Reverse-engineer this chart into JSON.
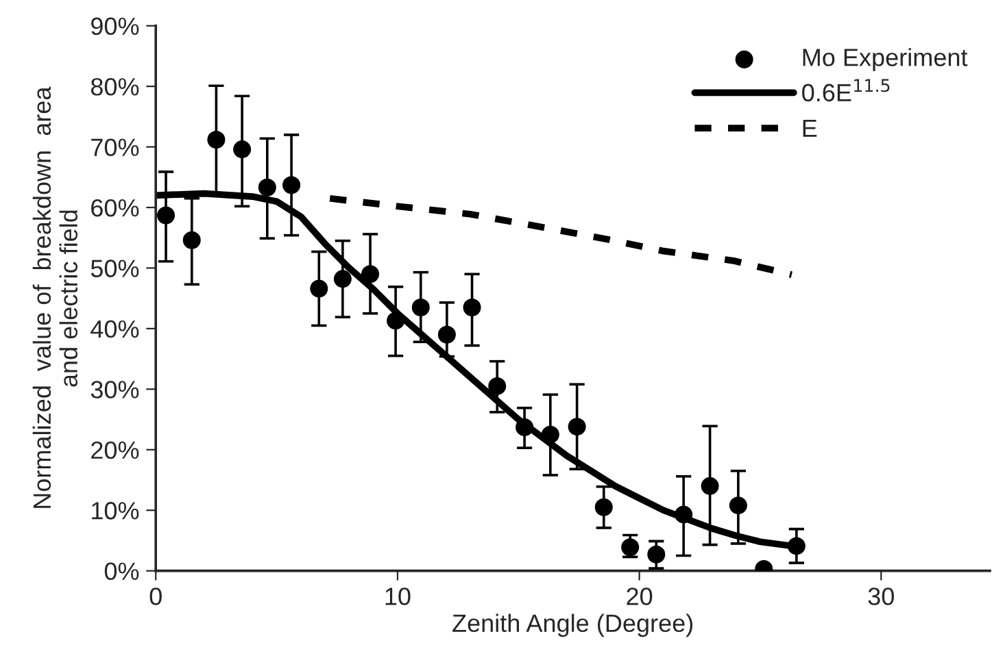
{
  "chart_data": {
    "type": "scatter",
    "xlabel": "Zenith Angle (Degree)",
    "ylabel": "Normalized  value of  breakdown  area\nand electric field",
    "xlim": [
      0,
      34.5
    ],
    "xticks": [
      0,
      10,
      20,
      30
    ],
    "ylim": [
      0,
      90
    ],
    "yticks": [
      {
        "value": 0,
        "label": "0%"
      },
      {
        "value": 10,
        "label": "10%"
      },
      {
        "value": 20,
        "label": "20%"
      },
      {
        "value": 30,
        "label": "30%"
      },
      {
        "value": 40,
        "label": "40%"
      },
      {
        "value": 50,
        "label": "50%"
      },
      {
        "value": 60,
        "label": "60%"
      },
      {
        "value": 70,
        "label": "70%"
      },
      {
        "value": 80,
        "label": "80%"
      },
      {
        "value": 90,
        "label": "90%"
      }
    ],
    "grid": false,
    "legend": "top right",
    "series": [
      {
        "name": "Mo Experiment",
        "marker": "circle",
        "color": "#000000",
        "x": [
          0.42,
          1.49,
          2.5,
          3.57,
          4.61,
          5.61,
          6.75,
          7.73,
          8.87,
          9.92,
          10.96,
          12.04,
          13.08,
          14.12,
          15.25,
          16.32,
          17.42,
          18.53,
          19.62,
          20.7,
          21.83,
          22.92,
          24.09,
          25.15,
          26.5
        ],
        "values": [
          58.7,
          54.6,
          71.2,
          69.6,
          63.3,
          63.7,
          46.6,
          48.2,
          49.0,
          41.3,
          43.5,
          39.0,
          43.5,
          30.5,
          23.7,
          22.5,
          23.8,
          10.5,
          3.9,
          2.7,
          9.3,
          14.0,
          10.8,
          0.3,
          4.1
        ],
        "errors": [
          [
            51.1,
            65.9
          ],
          [
            47.3,
            61.5
          ],
          [
            62.3,
            80.1
          ],
          [
            60.2,
            78.4
          ],
          [
            54.9,
            71.4
          ],
          [
            55.4,
            72.0
          ],
          [
            40.5,
            52.7
          ],
          [
            41.9,
            54.5
          ],
          [
            42.5,
            55.6
          ],
          [
            35.5,
            46.9
          ],
          [
            37.8,
            49.3
          ],
          [
            35.4,
            44.3
          ],
          [
            37.2,
            49.0
          ],
          [
            26.2,
            34.6
          ],
          [
            20.3,
            26.9
          ],
          [
            15.8,
            29.1
          ],
          [
            16.8,
            30.8
          ],
          [
            7.1,
            13.9
          ],
          [
            2.3,
            5.9
          ],
          [
            0.4,
            4.9
          ],
          [
            2.5,
            15.6
          ],
          [
            4.3,
            23.9
          ],
          [
            4.5,
            16.5
          ],
          null,
          [
            1.3,
            6.9
          ]
        ]
      },
      {
        "name": "0.6E$^{11.5}$",
        "type": "line",
        "line_style": "solid",
        "color": "#000000",
        "x": [
          0,
          2,
          4,
          5,
          6,
          7,
          8,
          9,
          10,
          11,
          12,
          13,
          14,
          15,
          16,
          17,
          18,
          19,
          20,
          21,
          22,
          23,
          24,
          25,
          26.5
        ],
        "values": [
          62,
          62.3,
          61.8,
          61,
          58.5,
          54,
          50,
          46.5,
          42.5,
          39,
          35.5,
          32,
          28.5,
          25,
          22,
          19,
          16.5,
          14,
          12,
          10,
          8.5,
          7,
          5.8,
          4.8,
          4
        ]
      },
      {
        "name": "E",
        "type": "line",
        "line_style": "dashed",
        "color": "#000000",
        "x": [
          7.2,
          10,
          13,
          15.9,
          18.6,
          21,
          23.9,
          26.3
        ],
        "values": [
          61.5,
          60.2,
          58.9,
          56.8,
          54.8,
          52.8,
          51.2,
          48.9
        ]
      }
    ]
  }
}
